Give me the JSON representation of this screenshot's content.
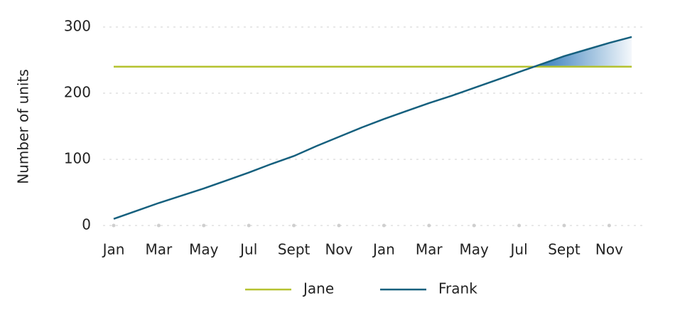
{
  "chart_data": {
    "type": "line",
    "y_label": "Number of units",
    "categories": [
      "Jan",
      null,
      "Mar",
      null,
      "May",
      null,
      "Jul",
      null,
      "Sept",
      null,
      "Nov",
      null,
      "Jan",
      null,
      "Mar",
      null,
      "May",
      null,
      "Jul",
      null,
      "Sept",
      null,
      "Nov",
      null
    ],
    "series": [
      {
        "name": "Jane",
        "color": "#b5c230",
        "values": [
          240,
          240,
          240,
          240,
          240,
          240,
          240,
          240,
          240,
          240,
          240,
          240,
          240,
          240,
          240,
          240,
          240,
          240,
          240,
          240,
          240,
          240,
          240,
          240
        ]
      },
      {
        "name": "Frank",
        "color": "#16607e",
        "values": [
          10,
          22,
          34,
          45,
          56,
          68,
          80,
          93,
          105,
          120,
          134,
          148,
          161,
          173,
          185,
          196,
          208,
          220,
          232,
          244,
          256,
          266,
          276,
          285
        ]
      }
    ],
    "ylim": [
      0,
      300
    ],
    "yticks": [
      0,
      100,
      200,
      300
    ],
    "grid": true
  }
}
